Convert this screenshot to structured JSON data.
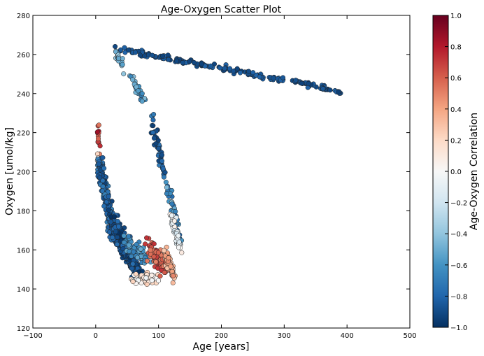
{
  "chart_data": {
    "type": "scatter",
    "title": "Age-Oxygen Scatter Plot",
    "xlabel": "Age [years]",
    "ylabel": "Oxygen [umol/kg]",
    "xlim": [
      -100,
      500
    ],
    "ylim": [
      120,
      280
    ],
    "xticks": [
      -100,
      0,
      100,
      200,
      300,
      400,
      500
    ],
    "yticks": [
      120,
      140,
      160,
      180,
      200,
      220,
      240,
      260,
      280
    ],
    "grid": false,
    "legend": "none",
    "colorbar": {
      "label": "Age-Oxygen Correlation",
      "range": [
        -1.0,
        1.0
      ],
      "ticks": [
        "−1.0",
        "−0.8",
        "−0.6",
        "−0.4",
        "−0.2",
        "0.0",
        "0.2",
        "0.4",
        "0.6",
        "0.8",
        "1.0"
      ],
      "colormap": [
        "#053061",
        "#2166ac",
        "#4393c3",
        "#92c5de",
        "#d1e5f0",
        "#f7f7f7",
        "#fddbc7",
        "#f4a582",
        "#d6604d",
        "#b2182b",
        "#67001f"
      ]
    },
    "clusters": [
      {
        "from": [
          30,
          263
        ],
        "to": [
          300,
          247
        ],
        "spread": [
          4,
          1.4
        ],
        "n": 150,
        "corr": [
          -0.95,
          -0.8
        ]
      },
      {
        "from": [
          310,
          247
        ],
        "to": [
          395,
          240
        ],
        "spread": [
          3,
          1.0
        ],
        "n": 50,
        "corr": [
          -0.95,
          -0.8
        ]
      },
      {
        "from": [
          30,
          262
        ],
        "to": [
          45,
          252
        ],
        "spread": [
          4,
          2
        ],
        "n": 20,
        "corr": [
          -0.6,
          -0.3
        ]
      },
      {
        "from": [
          55,
          250
        ],
        "to": [
          78,
          236
        ],
        "spread": [
          3,
          2
        ],
        "n": 30,
        "corr": [
          -0.7,
          -0.4
        ]
      },
      {
        "from": [
          88,
          228
        ],
        "to": [
          112,
          195
        ],
        "spread": [
          4,
          3
        ],
        "n": 45,
        "corr": [
          -0.95,
          -0.7
        ]
      },
      {
        "from": [
          112,
          195
        ],
        "to": [
          133,
          165
        ],
        "spread": [
          4,
          3
        ],
        "n": 45,
        "corr": [
          -0.8,
          -0.4
        ]
      },
      {
        "from": [
          3,
          224
        ],
        "to": [
          6,
          210
        ],
        "spread": [
          2,
          3
        ],
        "n": 15,
        "corr": [
          0.5,
          0.85
        ]
      },
      {
        "from": [
          4,
          208
        ],
        "to": [
          6,
          200
        ],
        "spread": [
          2,
          2
        ],
        "n": 10,
        "corr": [
          -0.1,
          0.25
        ]
      },
      {
        "from": [
          6,
          205
        ],
        "to": [
          30,
          165
        ],
        "spread": [
          6,
          5
        ],
        "n": 200,
        "corr": [
          -0.95,
          -0.65
        ]
      },
      {
        "from": [
          25,
          175
        ],
        "to": [
          65,
          150
        ],
        "spread": [
          8,
          5
        ],
        "n": 250,
        "corr": [
          -1.0,
          -0.75
        ]
      },
      {
        "from": [
          50,
          165
        ],
        "to": [
          80,
          155
        ],
        "spread": [
          8,
          4
        ],
        "n": 60,
        "corr": [
          -0.7,
          -0.5
        ]
      },
      {
        "from": [
          60,
          146
        ],
        "to": [
          95,
          145
        ],
        "spread": [
          10,
          3
        ],
        "n": 50,
        "corr": [
          -0.05,
          0.25
        ]
      },
      {
        "from": [
          85,
          162
        ],
        "to": [
          110,
          150
        ],
        "spread": [
          7,
          4
        ],
        "n": 80,
        "corr": [
          0.5,
          0.75
        ]
      },
      {
        "from": [
          110,
          158
        ],
        "to": [
          125,
          145
        ],
        "spread": [
          4,
          4
        ],
        "n": 60,
        "corr": [
          0.25,
          0.5
        ]
      },
      {
        "from": [
          120,
          178
        ],
        "to": [
          135,
          160
        ],
        "spread": [
          4,
          4
        ],
        "n": 50,
        "corr": [
          -0.2,
          0.1
        ]
      }
    ]
  }
}
